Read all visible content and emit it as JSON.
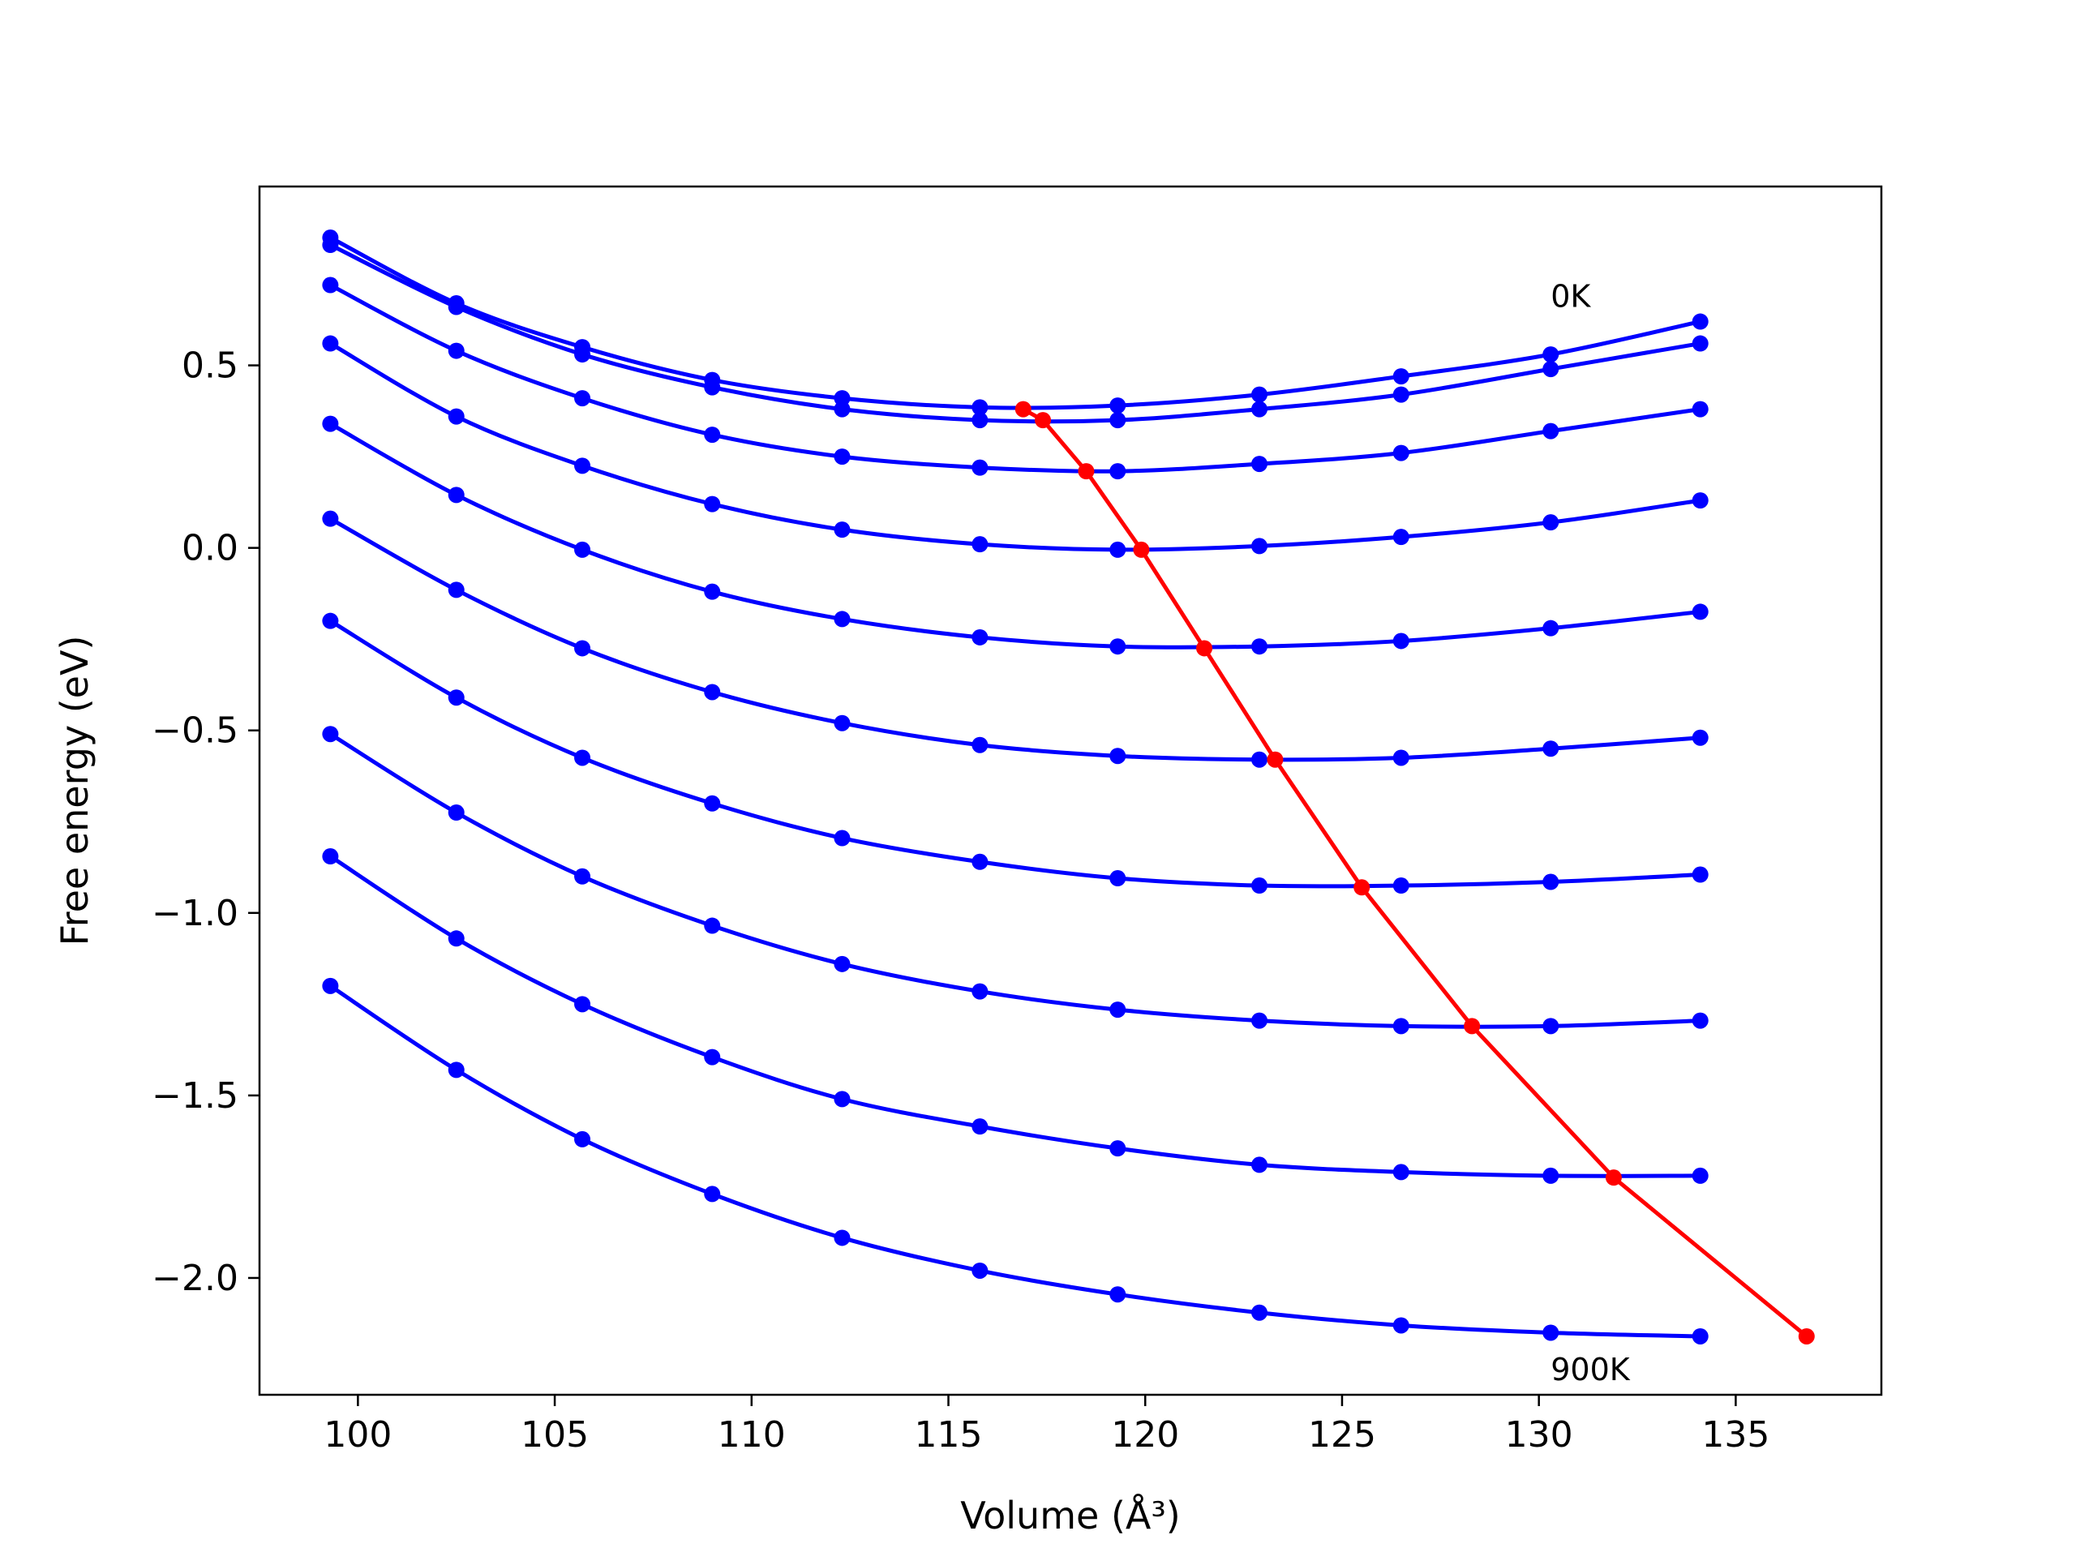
{
  "chart_data": {
    "type": "line",
    "xlabel": "Volume (Å³)",
    "ylabel": "Free energy (eV)",
    "xlim": [
      97.5,
      138.7
    ],
    "ylim": [
      -2.32,
      0.99
    ],
    "xticks": [
      100,
      105,
      110,
      115,
      120,
      125,
      130,
      135
    ],
    "yticks": [
      0.5,
      0.0,
      -0.5,
      -1.0,
      -1.5,
      -2.0
    ],
    "xtick_labels": [
      "100",
      "105",
      "110",
      "115",
      "120",
      "125",
      "130",
      "135"
    ],
    "ytick_labels": [
      "0.5",
      "0.0",
      "−0.5",
      "−1.0",
      "−1.5",
      "−2.0"
    ],
    "grid": false,
    "annotations": [
      {
        "text": "0K",
        "x": 130.3,
        "y": 0.66
      },
      {
        "text": "900K",
        "x": 130.3,
        "y": -2.28
      }
    ],
    "x": [
      99.3,
      102.5,
      105.7,
      109.0,
      112.3,
      115.8,
      119.3,
      122.9,
      126.5,
      130.3,
      134.1
    ],
    "series": [
      {
        "values": [
          0.83,
          0.66,
          0.53,
          0.44,
          0.38,
          0.35,
          0.35,
          0.38,
          0.42,
          0.49,
          0.56
        ]
      },
      {
        "values": [
          0.85,
          0.67,
          0.55,
          0.46,
          0.41,
          0.385,
          0.39,
          0.42,
          0.47,
          0.53,
          0.62
        ]
      },
      {
        "values": [
          0.72,
          0.54,
          0.41,
          0.31,
          0.25,
          0.22,
          0.21,
          0.23,
          0.26,
          0.32,
          0.38
        ]
      },
      {
        "values": [
          0.56,
          0.36,
          0.225,
          0.12,
          0.05,
          0.01,
          -0.005,
          0.005,
          0.03,
          0.07,
          0.13
        ]
      },
      {
        "values": [
          0.34,
          0.145,
          -0.005,
          -0.12,
          -0.195,
          -0.245,
          -0.27,
          -0.27,
          -0.255,
          -0.22,
          -0.175
        ]
      },
      {
        "values": [
          0.08,
          -0.115,
          -0.275,
          -0.395,
          -0.48,
          -0.54,
          -0.57,
          -0.58,
          -0.575,
          -0.55,
          -0.52
        ]
      },
      {
        "values": [
          -0.2,
          -0.41,
          -0.575,
          -0.7,
          -0.795,
          -0.86,
          -0.905,
          -0.925,
          -0.925,
          -0.915,
          -0.895
        ]
      },
      {
        "values": [
          -0.51,
          -0.725,
          -0.9,
          -1.035,
          -1.14,
          -1.215,
          -1.265,
          -1.295,
          -1.31,
          -1.31,
          -1.295
        ]
      },
      {
        "values": [
          -0.845,
          -1.07,
          -1.25,
          -1.395,
          -1.51,
          -1.585,
          -1.645,
          -1.69,
          -1.71,
          -1.72,
          -1.72
        ]
      },
      {
        "values": [
          -1.2,
          -1.43,
          -1.62,
          -1.77,
          -1.89,
          -1.98,
          -2.045,
          -2.095,
          -2.13,
          -2.15,
          -2.16
        ]
      }
    ],
    "minimum_curve": {
      "x": [
        116.9,
        117.4,
        118.5,
        119.9,
        121.5,
        123.3,
        125.5,
        128.3,
        131.9,
        136.8
      ],
      "values": [
        0.38,
        0.35,
        0.21,
        -0.005,
        -0.275,
        -0.58,
        -0.93,
        -1.31,
        -1.725,
        -2.16
      ]
    },
    "colors": {
      "series": "#0000ff",
      "minimum_curve": "#ff0000",
      "axes": "#000000"
    }
  }
}
